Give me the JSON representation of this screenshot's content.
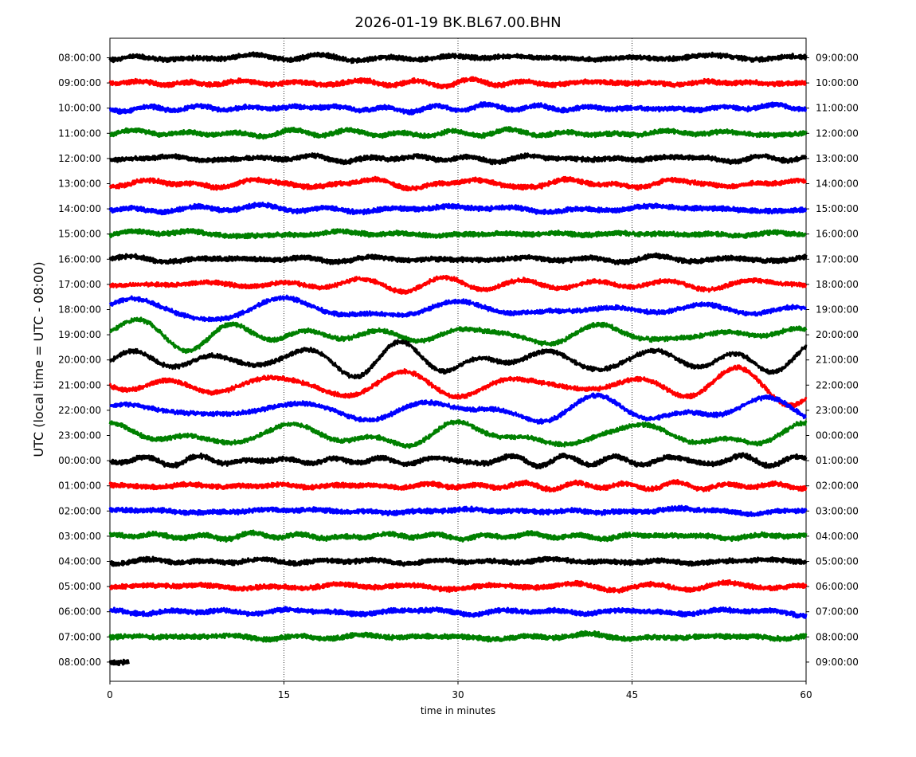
{
  "chart_data": {
    "type": "line",
    "title": "2026-01-19 BK.BL67.00.BHN",
    "xlabel": "time in minutes",
    "ylabel": "UTC (local time = UTC - 08:00)",
    "xlim": [
      0,
      60
    ],
    "x_ticks": [
      0,
      15,
      30,
      45,
      60
    ],
    "grid": "vertical dotted at 15, 30, 45",
    "left_tick_labels": [
      "08:00:00",
      "09:00:00",
      "10:00:00",
      "11:00:00",
      "12:00:00",
      "13:00:00",
      "14:00:00",
      "15:00:00",
      "16:00:00",
      "17:00:00",
      "18:00:00",
      "19:00:00",
      "20:00:00",
      "21:00:00",
      "22:00:00",
      "23:00:00",
      "00:00:00",
      "01:00:00",
      "02:00:00",
      "03:00:00",
      "04:00:00",
      "05:00:00",
      "06:00:00",
      "07:00:00",
      "08:00:00"
    ],
    "right_tick_labels": [
      "09:00:00",
      "10:00:00",
      "11:00:00",
      "12:00:00",
      "13:00:00",
      "14:00:00",
      "15:00:00",
      "16:00:00",
      "17:00:00",
      "18:00:00",
      "19:00:00",
      "20:00:00",
      "21:00:00",
      "22:00:00",
      "23:00:00",
      "00:00:00",
      "01:00:00",
      "02:00:00",
      "03:00:00",
      "04:00:00",
      "05:00:00",
      "06:00:00",
      "07:00:00",
      "08:00:00",
      "09:00:00"
    ],
    "color_cycle": [
      "#000000",
      "#ff0000",
      "#0000ff",
      "#008000"
    ],
    "rows": [
      {
        "start": "08:00:00",
        "color": "#000000",
        "amplitude": 0.22,
        "end_minute": 60
      },
      {
        "start": "09:00:00",
        "color": "#ff0000",
        "amplitude": 0.2,
        "end_minute": 60
      },
      {
        "start": "10:00:00",
        "color": "#0000ff",
        "amplitude": 0.22,
        "end_minute": 60
      },
      {
        "start": "11:00:00",
        "color": "#008000",
        "amplitude": 0.22,
        "end_minute": 60
      },
      {
        "start": "12:00:00",
        "color": "#000000",
        "amplitude": 0.22,
        "end_minute": 60
      },
      {
        "start": "13:00:00",
        "color": "#ff0000",
        "amplitude": 0.28,
        "end_minute": 60
      },
      {
        "start": "14:00:00",
        "color": "#0000ff",
        "amplitude": 0.24,
        "end_minute": 60
      },
      {
        "start": "15:00:00",
        "color": "#008000",
        "amplitude": 0.22,
        "end_minute": 60
      },
      {
        "start": "16:00:00",
        "color": "#000000",
        "amplitude": 0.22,
        "end_minute": 60
      },
      {
        "start": "17:00:00",
        "color": "#ff0000",
        "amplitude": 0.55,
        "end_minute": 60
      },
      {
        "start": "18:00:00",
        "color": "#0000ff",
        "amplitude": 0.9,
        "end_minute": 60
      },
      {
        "start": "19:00:00",
        "color": "#008000",
        "amplitude": 1.0,
        "end_minute": 60
      },
      {
        "start": "20:00:00",
        "color": "#000000",
        "amplitude": 1.15,
        "end_minute": 60
      },
      {
        "start": "21:00:00",
        "color": "#ff0000",
        "amplitude": 1.2,
        "end_minute": 60
      },
      {
        "start": "22:00:00",
        "color": "#0000ff",
        "amplitude": 1.0,
        "end_minute": 60
      },
      {
        "start": "23:00:00",
        "color": "#008000",
        "amplitude": 0.9,
        "end_minute": 60
      },
      {
        "start": "00:00:00",
        "color": "#000000",
        "amplitude": 0.35,
        "end_minute": 60
      },
      {
        "start": "01:00:00",
        "color": "#ff0000",
        "amplitude": 0.22,
        "end_minute": 60
      },
      {
        "start": "02:00:00",
        "color": "#0000ff",
        "amplitude": 0.22,
        "end_minute": 60
      },
      {
        "start": "03:00:00",
        "color": "#008000",
        "amplitude": 0.2,
        "end_minute": 60
      },
      {
        "start": "04:00:00",
        "color": "#000000",
        "amplitude": 0.2,
        "end_minute": 60
      },
      {
        "start": "05:00:00",
        "color": "#ff0000",
        "amplitude": 0.22,
        "end_minute": 60
      },
      {
        "start": "06:00:00",
        "color": "#0000ff",
        "amplitude": 0.22,
        "end_minute": 60
      },
      {
        "start": "07:00:00",
        "color": "#008000",
        "amplitude": 0.22,
        "end_minute": 60
      },
      {
        "start": "08:00:00",
        "color": "#000000",
        "amplitude": 0.2,
        "end_minute": 1.6
      }
    ]
  }
}
